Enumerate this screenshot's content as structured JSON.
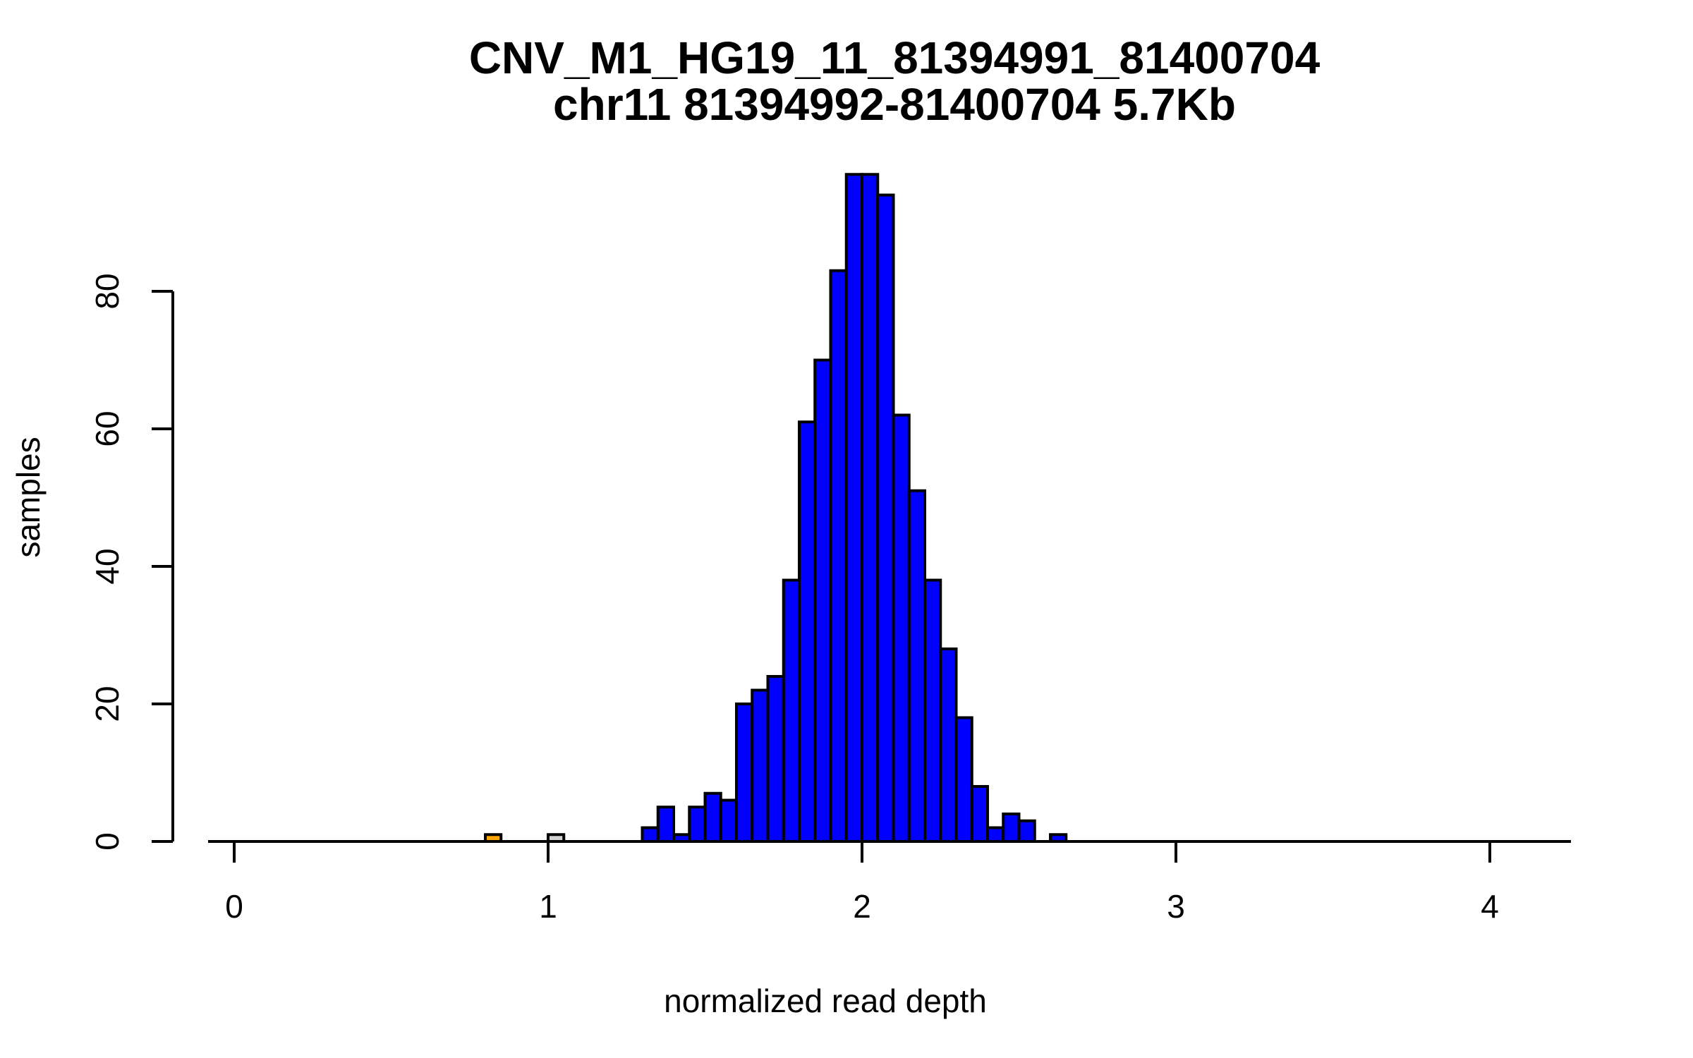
{
  "title": {
    "line1": "CNV_M1_HG19_11_81394991_81400704",
    "line2": "chr11 81394992-81400704 5.7Kb"
  },
  "axes": {
    "xlabel": "normalized read depth",
    "ylabel": "samples",
    "x_ticks": [
      0,
      1,
      2,
      3,
      4
    ],
    "y_ticks": [
      0,
      20,
      40,
      60,
      80
    ]
  },
  "chart_data": {
    "type": "bar",
    "subtype": "histogram",
    "title": "CNV_M1_HG19_11_81394991_81400704",
    "subtitle": "chr11 81394992-81400704 5.7Kb",
    "xlabel": "normalized read depth",
    "ylabel": "samples",
    "xlim": [
      -0.08,
      4.26
    ],
    "ylim": [
      0,
      100
    ],
    "grid": false,
    "legend": false,
    "bin_width": 0.05,
    "colors": {
      "default_fill": "#0000FF",
      "outlier_low_fill": "#FFA500",
      "reference_fill": "#D3D3D3",
      "stroke": "#000000"
    },
    "bins": [
      {
        "x0": 0.8,
        "count": 1,
        "color": "#FFA500"
      },
      {
        "x0": 1.0,
        "count": 1,
        "color": "#D3D3D3"
      },
      {
        "x0": 1.3,
        "count": 2,
        "color": "#0000FF"
      },
      {
        "x0": 1.35,
        "count": 5,
        "color": "#0000FF"
      },
      {
        "x0": 1.4,
        "count": 1,
        "color": "#0000FF"
      },
      {
        "x0": 1.45,
        "count": 5,
        "color": "#0000FF"
      },
      {
        "x0": 1.5,
        "count": 7,
        "color": "#0000FF"
      },
      {
        "x0": 1.55,
        "count": 6,
        "color": "#0000FF"
      },
      {
        "x0": 1.6,
        "count": 20,
        "color": "#0000FF"
      },
      {
        "x0": 1.65,
        "count": 22,
        "color": "#0000FF"
      },
      {
        "x0": 1.7,
        "count": 24,
        "color": "#0000FF"
      },
      {
        "x0": 1.75,
        "count": 38,
        "color": "#0000FF"
      },
      {
        "x0": 1.8,
        "count": 61,
        "color": "#0000FF"
      },
      {
        "x0": 1.85,
        "count": 70,
        "color": "#0000FF"
      },
      {
        "x0": 1.9,
        "count": 83,
        "color": "#0000FF"
      },
      {
        "x0": 1.95,
        "count": 97,
        "color": "#0000FF"
      },
      {
        "x0": 2.0,
        "count": 97,
        "color": "#0000FF"
      },
      {
        "x0": 2.05,
        "count": 94,
        "color": "#0000FF"
      },
      {
        "x0": 2.1,
        "count": 62,
        "color": "#0000FF"
      },
      {
        "x0": 2.15,
        "count": 51,
        "color": "#0000FF"
      },
      {
        "x0": 2.2,
        "count": 38,
        "color": "#0000FF"
      },
      {
        "x0": 2.25,
        "count": 28,
        "color": "#0000FF"
      },
      {
        "x0": 2.3,
        "count": 18,
        "color": "#0000FF"
      },
      {
        "x0": 2.35,
        "count": 8,
        "color": "#0000FF"
      },
      {
        "x0": 2.4,
        "count": 2,
        "color": "#0000FF"
      },
      {
        "x0": 2.45,
        "count": 4,
        "color": "#0000FF"
      },
      {
        "x0": 2.5,
        "count": 3,
        "color": "#0000FF"
      },
      {
        "x0": 2.6,
        "count": 1,
        "color": "#0000FF"
      }
    ]
  }
}
